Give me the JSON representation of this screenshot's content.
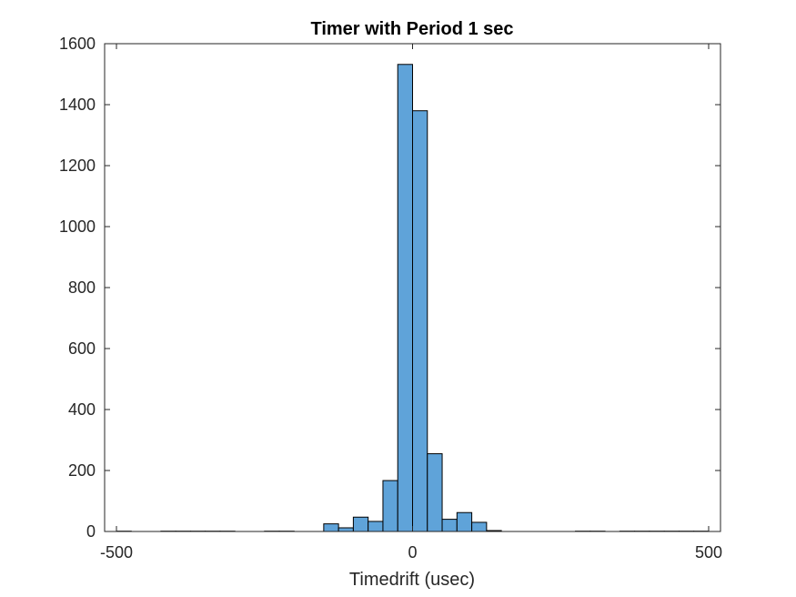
{
  "chart_data": {
    "type": "bar",
    "title": "Timer with Period 1 sec",
    "xlabel": "Timedrift (usec)",
    "ylabel": "",
    "xlim": [
      -520,
      520
    ],
    "ylim": [
      0,
      1600
    ],
    "xticks": [
      -500,
      0,
      500
    ],
    "yticks": [
      0,
      200,
      400,
      600,
      800,
      1000,
      1200,
      1400,
      1600
    ],
    "bin_width": 25,
    "grid": false,
    "box": true,
    "bar_color": "#5fa3d9",
    "edge_color": "#000000",
    "bins": [
      {
        "x0": -500,
        "x1": -475,
        "count": 1
      },
      {
        "x0": -425,
        "x1": -400,
        "count": 1
      },
      {
        "x0": -400,
        "x1": -375,
        "count": 1
      },
      {
        "x0": -375,
        "x1": -350,
        "count": 1
      },
      {
        "x0": -350,
        "x1": -325,
        "count": 1
      },
      {
        "x0": -325,
        "x1": -300,
        "count": 1
      },
      {
        "x0": -250,
        "x1": -225,
        "count": 1
      },
      {
        "x0": -225,
        "x1": -200,
        "count": 1
      },
      {
        "x0": -150,
        "x1": -125,
        "count": 25
      },
      {
        "x0": -125,
        "x1": -100,
        "count": 12
      },
      {
        "x0": -100,
        "x1": -75,
        "count": 47
      },
      {
        "x0": -75,
        "x1": -50,
        "count": 33
      },
      {
        "x0": -50,
        "x1": -25,
        "count": 167
      },
      {
        "x0": -25,
        "x1": 0,
        "count": 1532
      },
      {
        "x0": 0,
        "x1": 25,
        "count": 1380
      },
      {
        "x0": 25,
        "x1": 50,
        "count": 255
      },
      {
        "x0": 50,
        "x1": 75,
        "count": 40
      },
      {
        "x0": 75,
        "x1": 100,
        "count": 62
      },
      {
        "x0": 100,
        "x1": 125,
        "count": 30
      },
      {
        "x0": 125,
        "x1": 150,
        "count": 3
      },
      {
        "x0": 275,
        "x1": 300,
        "count": 1
      },
      {
        "x0": 300,
        "x1": 325,
        "count": 1
      },
      {
        "x0": 350,
        "x1": 375,
        "count": 1
      },
      {
        "x0": 375,
        "x1": 400,
        "count": 1
      },
      {
        "x0": 400,
        "x1": 425,
        "count": 1
      },
      {
        "x0": 425,
        "x1": 450,
        "count": 1
      },
      {
        "x0": 450,
        "x1": 475,
        "count": 1
      },
      {
        "x0": 475,
        "x1": 500,
        "count": 1
      }
    ]
  }
}
